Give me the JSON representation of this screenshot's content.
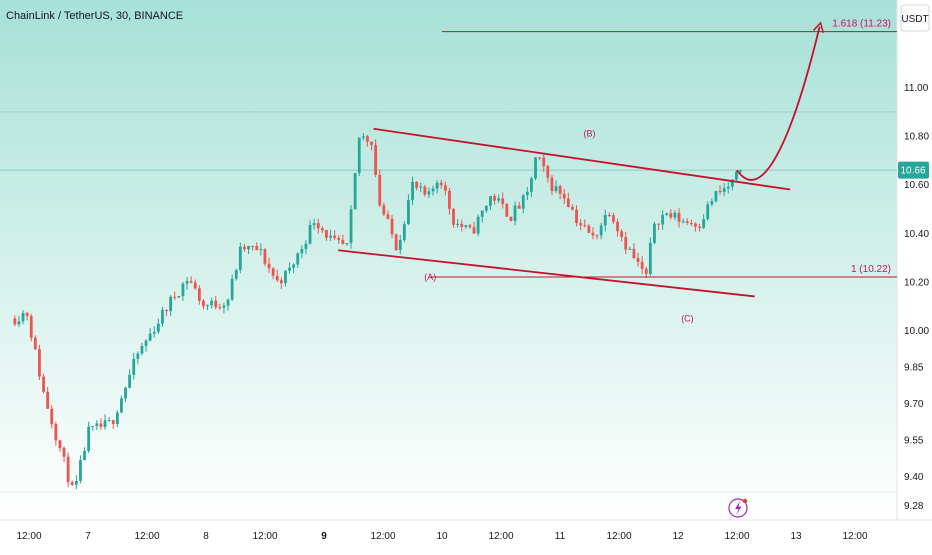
{
  "header": {
    "symbol_title": "ChainLink / TetherUS, 30, BINANCE",
    "currency_button": "USDT"
  },
  "colors": {
    "background_top": "#a6e1d7",
    "background_bottom": "#ffffff",
    "up_candle": "#26a69a",
    "down_candle": "#ef5350",
    "drawing": "#c8102e",
    "price_badge": "#26a69a"
  },
  "chart_data": {
    "type": "candlestick",
    "title": "ChainLink / TetherUS, 30, BINANCE",
    "ylim": [
      9.22,
      11.36
    ],
    "y_ticks": [
      9.28,
      9.4,
      9.55,
      9.7,
      9.85,
      10.0,
      10.2,
      10.4,
      10.6,
      10.8,
      11.0
    ],
    "x_ticks": [
      {
        "label": "12:00",
        "pos": -0.5,
        "bold": false
      },
      {
        "label": "7",
        "pos": 0,
        "bold": false
      },
      {
        "label": "12:00",
        "pos": 0.5,
        "bold": false
      },
      {
        "label": "8",
        "pos": 1,
        "bold": false
      },
      {
        "label": "12:00",
        "pos": 1.5,
        "bold": false
      },
      {
        "label": "9",
        "pos": 2,
        "bold": true
      },
      {
        "label": "12:00",
        "pos": 2.5,
        "bold": false
      },
      {
        "label": "10",
        "pos": 3,
        "bold": false
      },
      {
        "label": "12:00",
        "pos": 3.5,
        "bold": false
      },
      {
        "label": "11",
        "pos": 4,
        "bold": false
      },
      {
        "label": "12:00",
        "pos": 4.5,
        "bold": false
      },
      {
        "label": "12",
        "pos": 5,
        "bold": false
      },
      {
        "label": "12:00",
        "pos": 5.5,
        "bold": false
      },
      {
        "label": "13",
        "pos": 6,
        "bold": false
      },
      {
        "label": "12:00",
        "pos": 6.5,
        "bold": false
      }
    ],
    "current_price": {
      "value": 10.66,
      "label": "10.66"
    },
    "key_points": [
      {
        "x": -0.62,
        "y": 10.05
      },
      {
        "x": -0.52,
        "y": 10.08
      },
      {
        "x": -0.38,
        "y": 9.75
      },
      {
        "x": -0.12,
        "y": 9.32
      },
      {
        "x": 0.0,
        "y": 9.58
      },
      {
        "x": 0.2,
        "y": 9.62
      },
      {
        "x": 0.42,
        "y": 9.9
      },
      {
        "x": 0.7,
        "y": 10.12
      },
      {
        "x": 0.85,
        "y": 10.22
      },
      {
        "x": 0.98,
        "y": 10.1
      },
      {
        "x": 1.18,
        "y": 10.12
      },
      {
        "x": 1.3,
        "y": 10.34
      },
      {
        "x": 1.45,
        "y": 10.33
      },
      {
        "x": 1.6,
        "y": 10.2
      },
      {
        "x": 1.7,
        "y": 10.24
      },
      {
        "x": 1.8,
        "y": 10.33
      },
      {
        "x": 1.92,
        "y": 10.46
      },
      {
        "x": 2.08,
        "y": 10.36
      },
      {
        "x": 2.2,
        "y": 10.34
      },
      {
        "x": 2.3,
        "y": 10.8
      },
      {
        "x": 2.42,
        "y": 10.78
      },
      {
        "x": 2.45,
        "y": 10.55
      },
      {
        "x": 2.62,
        "y": 10.34
      },
      {
        "x": 2.75,
        "y": 10.6
      },
      {
        "x": 2.88,
        "y": 10.54
      },
      {
        "x": 2.98,
        "y": 10.64
      },
      {
        "x": 3.1,
        "y": 10.45
      },
      {
        "x": 3.25,
        "y": 10.4
      },
      {
        "x": 3.42,
        "y": 10.56
      },
      {
        "x": 3.58,
        "y": 10.47
      },
      {
        "x": 3.72,
        "y": 10.55
      },
      {
        "x": 3.8,
        "y": 10.72
      },
      {
        "x": 3.92,
        "y": 10.6
      },
      {
        "x": 4.05,
        "y": 10.55
      },
      {
        "x": 4.15,
        "y": 10.45
      },
      {
        "x": 4.28,
        "y": 10.38
      },
      {
        "x": 4.42,
        "y": 10.5
      },
      {
        "x": 4.55,
        "y": 10.36
      },
      {
        "x": 4.65,
        "y": 10.28
      },
      {
        "x": 4.73,
        "y": 10.22
      },
      {
        "x": 4.8,
        "y": 10.45
      },
      {
        "x": 4.9,
        "y": 10.48
      },
      {
        "x": 5.05,
        "y": 10.45
      },
      {
        "x": 5.18,
        "y": 10.44
      },
      {
        "x": 5.3,
        "y": 10.55
      },
      {
        "x": 5.45,
        "y": 10.6
      },
      {
        "x": 5.53,
        "y": 10.66
      }
    ],
    "drawings": {
      "channel_upper": [
        {
          "x": 2.42,
          "y": 10.83
        },
        {
          "x": 5.95,
          "y": 10.58
        }
      ],
      "channel_lower": [
        {
          "x": 2.12,
          "y": 10.33
        },
        {
          "x": 5.65,
          "y": 10.14
        }
      ],
      "fib_1618": {
        "label": "1.618 (11.23)",
        "value": 11.23,
        "x_start": 3.0
      },
      "fib_1": {
        "label": "1 (10.22)",
        "value": 10.22,
        "x_start": 2.9
      },
      "projection": [
        {
          "x": 5.5,
          "y": 10.66
        },
        {
          "x": 5.7,
          "y": 10.52
        },
        {
          "x": 5.95,
          "y": 10.75
        },
        {
          "x": 6.2,
          "y": 11.25
        }
      ]
    },
    "wave_labels": [
      {
        "label": "(A)",
        "x": 2.9,
        "y": 10.22
      },
      {
        "label": "(B)",
        "x": 4.25,
        "y": 10.81
      },
      {
        "label": "(C)",
        "x": 5.08,
        "y": 10.05
      }
    ]
  }
}
